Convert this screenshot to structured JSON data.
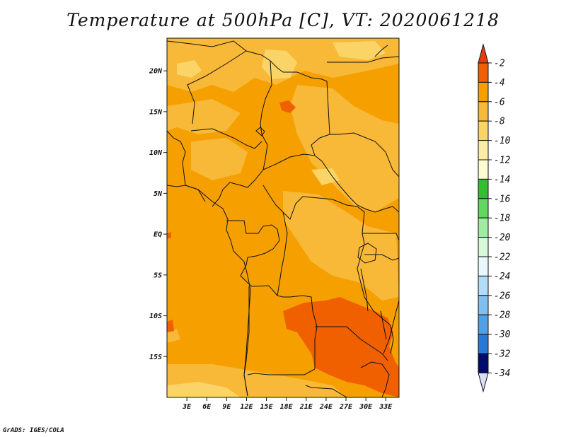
{
  "title": "Temperature at 500hPa [C], VT: 2020061218",
  "credit": "GrADS: IGES/COLA",
  "map": {
    "lon_range": [
      0,
      35
    ],
    "lat_range": [
      -20,
      24
    ],
    "lat_ticks": [
      {
        "value": 20,
        "label": "20N"
      },
      {
        "value": 15,
        "label": "15N"
      },
      {
        "value": 10,
        "label": "10N"
      },
      {
        "value": 5,
        "label": "5N"
      },
      {
        "value": 0,
        "label": "EQ"
      },
      {
        "value": -5,
        "label": "5S"
      },
      {
        "value": -10,
        "label": "10S"
      },
      {
        "value": -15,
        "label": "15S"
      }
    ],
    "lon_ticks": [
      {
        "value": 3,
        "label": "3E"
      },
      {
        "value": 6,
        "label": "6E"
      },
      {
        "value": 9,
        "label": "9E"
      },
      {
        "value": 12,
        "label": "12E"
      },
      {
        "value": 15,
        "label": "15E"
      },
      {
        "value": 18,
        "label": "18E"
      },
      {
        "value": 21,
        "label": "21E"
      },
      {
        "value": 24,
        "label": "24E"
      },
      {
        "value": 27,
        "label": "27E"
      },
      {
        "value": 30,
        "label": "30E"
      },
      {
        "value": 33,
        "label": "33E"
      }
    ]
  },
  "colorbar": {
    "levels": [
      {
        "label": "-2",
        "color": "#f06000"
      },
      {
        "label": "-4",
        "color": "#f5a000"
      },
      {
        "label": "-6",
        "color": "#f8b838"
      },
      {
        "label": "-8",
        "color": "#fbd468"
      },
      {
        "label": "-10",
        "color": "#fdeca8"
      },
      {
        "label": "-12",
        "color": "#fefbd0"
      },
      {
        "label": "-14",
        "color": "#30c030"
      },
      {
        "label": "-16",
        "color": "#60d860"
      },
      {
        "label": "-18",
        "color": "#a0eca0"
      },
      {
        "label": "-20",
        "color": "#d8f8d8"
      },
      {
        "label": "-22",
        "color": "#e8f8fc"
      },
      {
        "label": "-24",
        "color": "#b0dcf8"
      },
      {
        "label": "-26",
        "color": "#80c0f0"
      },
      {
        "label": "-28",
        "color": "#50a0e8"
      },
      {
        "label": "-30",
        "color": "#2878d8"
      },
      {
        "label": "-32",
        "color": "#1850c0"
      },
      {
        "label": "-34",
        "color": "#0a2ea0"
      }
    ],
    "top_arrow_color": "#e83c10",
    "bottom_arrow_color": "#d8e0f8",
    "bottom_fill_color": "#000c6c"
  },
  "field_colors": {
    "base": "#f5a000",
    "warm": "#f06000",
    "cool": "#f8b838",
    "cooler": "#fbd468"
  }
}
